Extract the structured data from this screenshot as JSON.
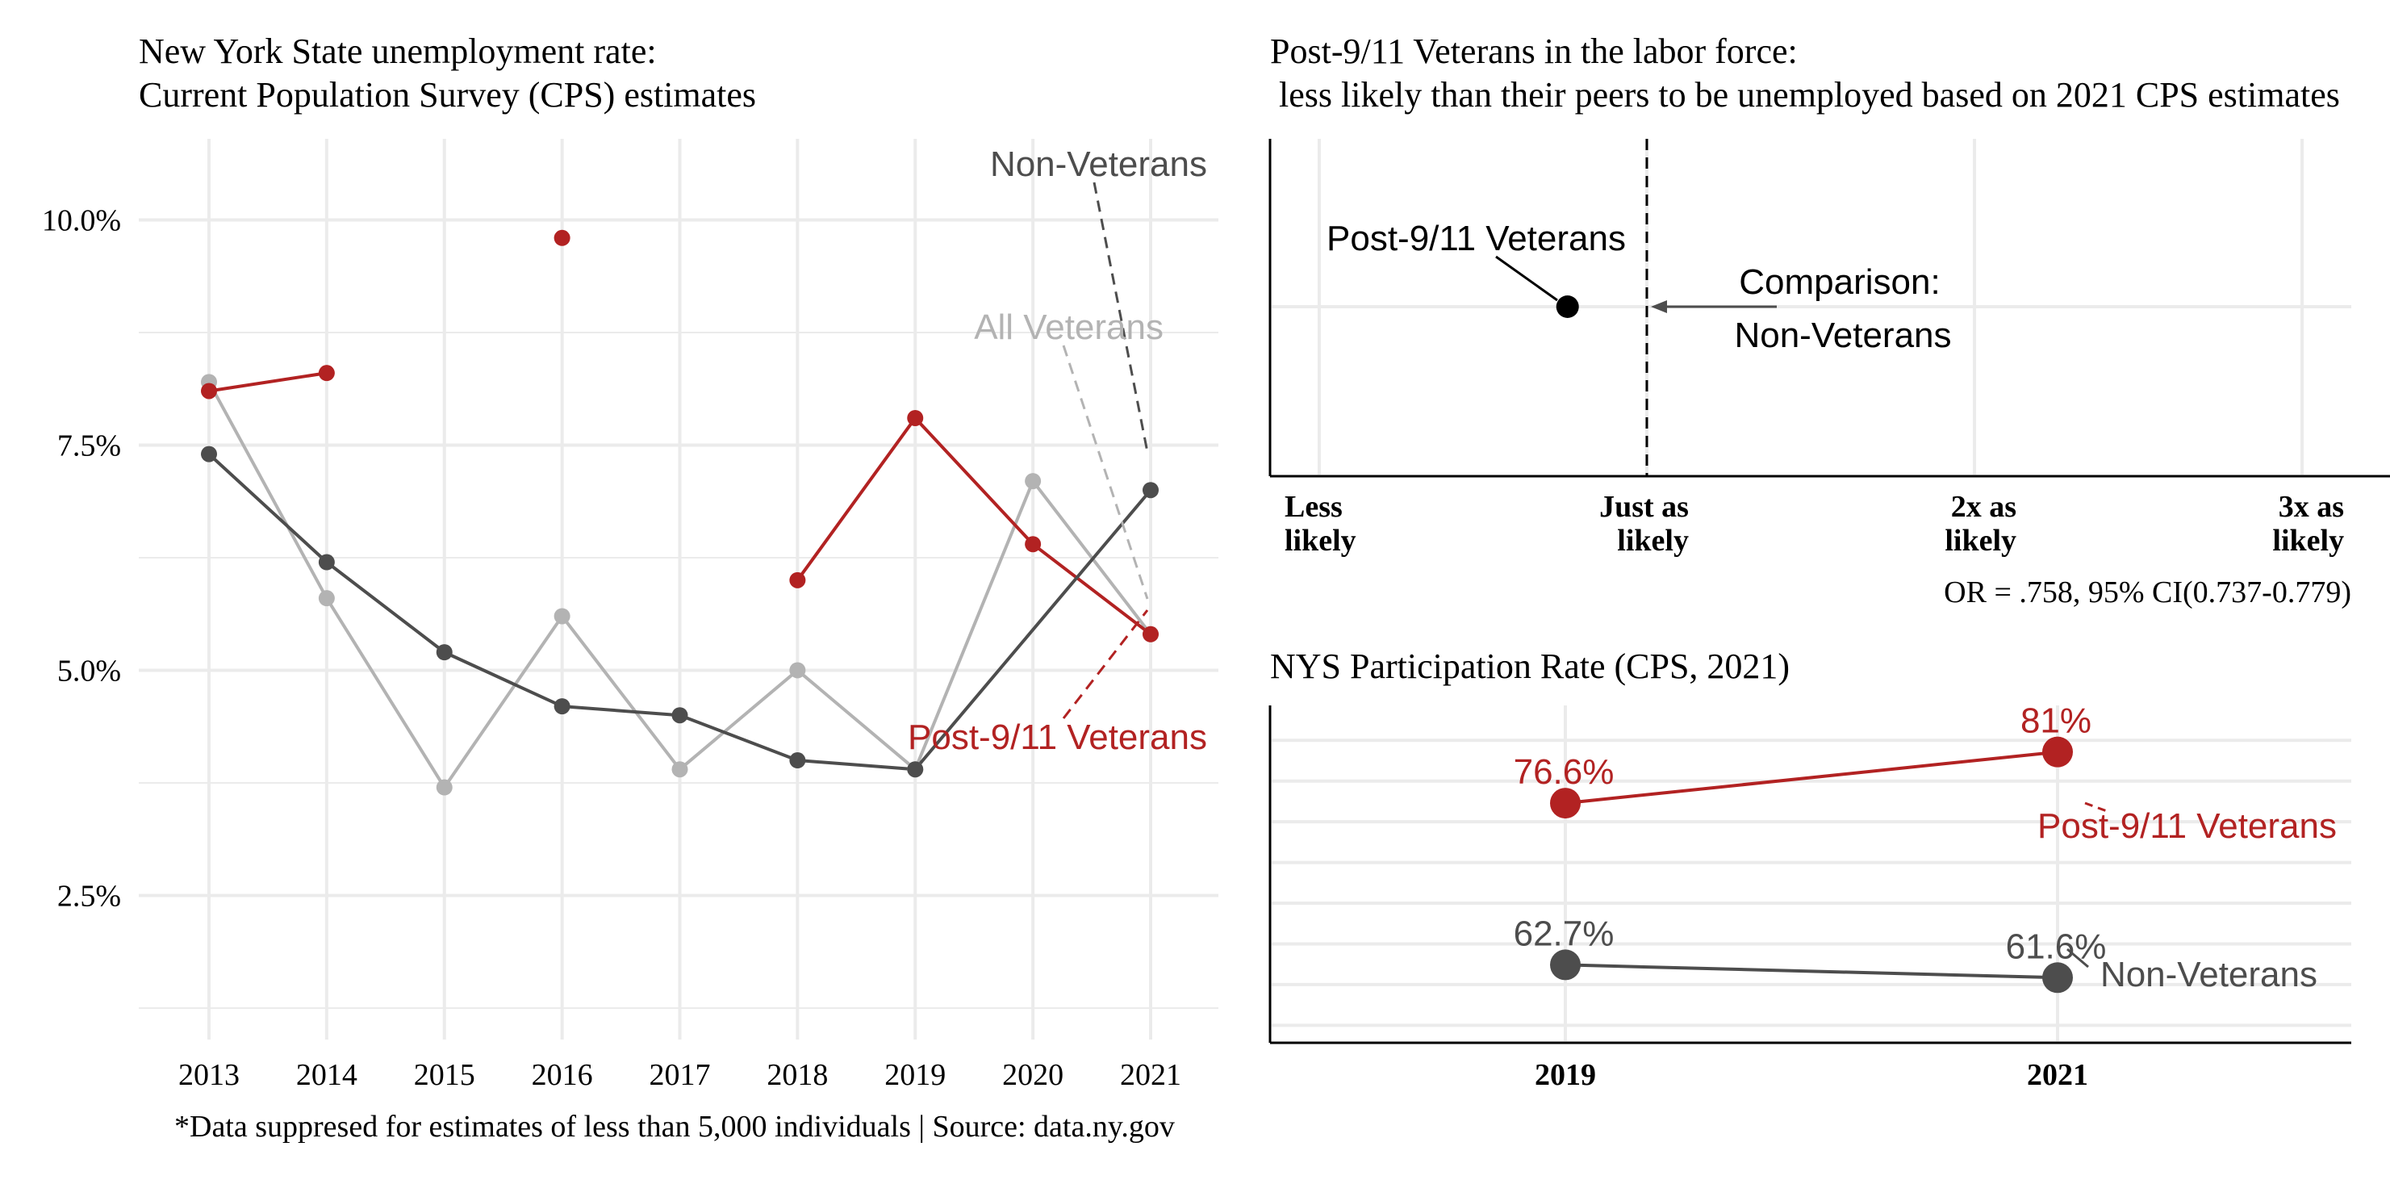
{
  "colors": {
    "veterans_post911": "#b22222",
    "non_veterans": "#4d4d4d",
    "all_veterans": "#b3b3b3",
    "grid": "#ebebeb",
    "text": "#000000"
  },
  "chart_data": [
    {
      "type": "line",
      "title": "New York State unemployment rate:",
      "subtitle": "Current Population Survey (CPS) estimates",
      "x": [
        "2013",
        "2014",
        "2015",
        "2016",
        "2017",
        "2018",
        "2019",
        "2020",
        "2021"
      ],
      "y_ticks": [
        "2.5%",
        "5.0%",
        "7.5%",
        "10.0%"
      ],
      "ylim": [
        0.9,
        10.9
      ],
      "grid": true,
      "series": [
        {
          "name": "All Veterans",
          "color": "#b3b3b3",
          "values": [
            8.2,
            5.8,
            3.7,
            5.6,
            3.9,
            5.0,
            3.9,
            7.1,
            5.4
          ]
        },
        {
          "name": "Non-Veterans",
          "color": "#4d4d4d",
          "values": [
            7.4,
            6.2,
            5.2,
            4.6,
            4.5,
            4.0,
            3.9,
            null,
            7.0
          ]
        },
        {
          "name": "Post-9/11 Veterans",
          "color": "#b22222",
          "values": [
            8.1,
            8.3,
            null,
            9.8,
            null,
            6.0,
            7.8,
            6.4,
            5.4
          ]
        }
      ],
      "caption": "*Data suppresed for estimates of less than 5,000 individuals | Source: data.ny.gov"
    },
    {
      "type": "scatter",
      "title": "Post-9/11 Veterans in the labor force:",
      "subtitle": " less likely than their peers to be unemployed based on 2021 CPS estimates",
      "x_ticks": [
        {
          "line1": "Less",
          "line2": "likely",
          "value": 0
        },
        {
          "line1": "Just as",
          "line2": "likely",
          "value": 1
        },
        {
          "line1": "2x as",
          "line2": "likely",
          "value": 2
        },
        {
          "line1": "3x as",
          "line2": "likely",
          "value": 3
        }
      ],
      "xlim": [
        -0.15,
        3.15
      ],
      "reference_line": 1,
      "points": [
        {
          "name": "Post-9/11 Veterans",
          "x": 0.758
        }
      ],
      "annotation_label": "Post-9/11 Veterans",
      "comparison_line1": "Comparison:",
      "comparison_line2": "Non-Veterans",
      "odds_ratio_text": "OR = .758, 95% CI(0.737-0.779)"
    },
    {
      "type": "line",
      "title": "NYS Participation Rate (CPS, 2021)",
      "x": [
        "2019",
        "2021"
      ],
      "grid": true,
      "series": [
        {
          "name": "Post-9/11 Veterans",
          "color": "#b22222",
          "values": [
            76.6,
            81
          ],
          "labels": [
            "76.6%",
            "81%"
          ]
        },
        {
          "name": "Non-Veterans",
          "color": "#4d4d4d",
          "values": [
            62.7,
            61.6
          ],
          "labels": [
            "62.7%",
            "61.6%"
          ]
        }
      ]
    }
  ]
}
